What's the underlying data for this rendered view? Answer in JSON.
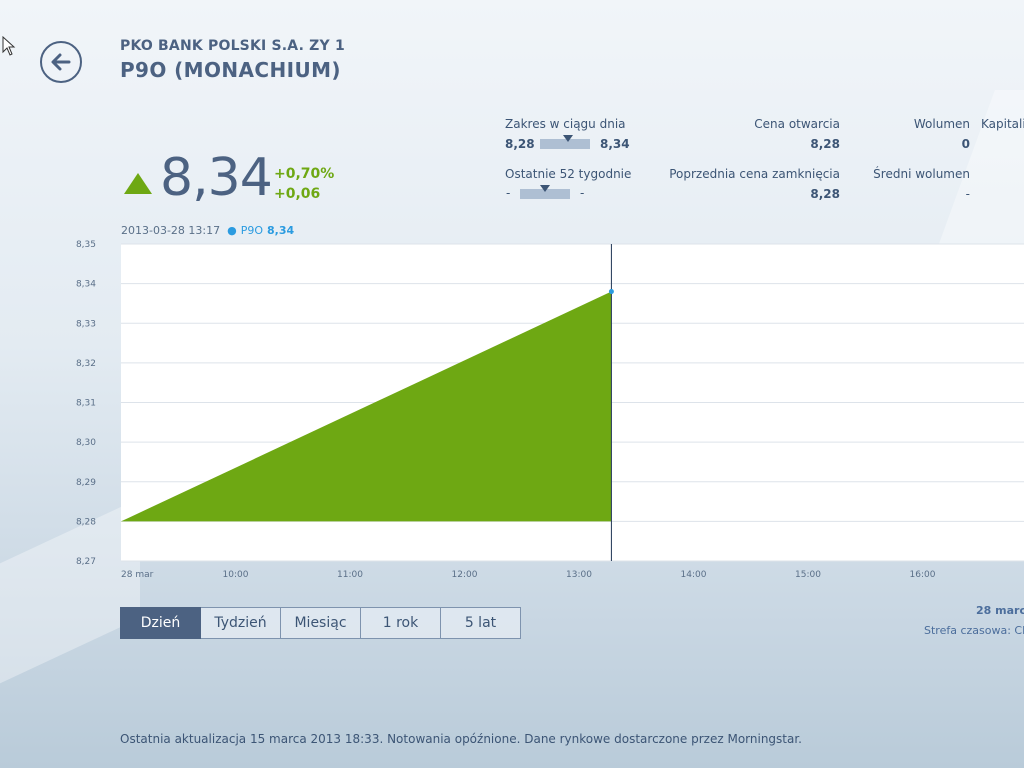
{
  "header": {
    "company": "PKO BANK POLSKI S.A. ZY 1",
    "ticker": "P9O (MONACHIUM)"
  },
  "quote": {
    "price": "8,34",
    "direction": "up",
    "change_percent": "+0,70%",
    "change_abs": "+0,06"
  },
  "stats": {
    "day_range": {
      "label": "Zakres w ciągu dnia",
      "low": "8,28",
      "high": "8,34",
      "position": 0.55
    },
    "week52_range": {
      "label": "Ostatnie 52 tygodnie",
      "low": "-",
      "high": "-",
      "position": 0.5
    },
    "open": {
      "label": "Cena otwarcia",
      "value": "8,28"
    },
    "prev_close": {
      "label": "Poprzednia cena zamknięcia",
      "value": "8,28"
    },
    "volume": {
      "label": "Wolumen",
      "value": "0"
    },
    "avg_volume": {
      "label": "Średni wolumen",
      "value": "-"
    },
    "market_cap": {
      "label": "Kapitaliz"
    }
  },
  "hover": {
    "datetime": "2013-03-28 13:17",
    "symbol": "P9O",
    "value": "8,34"
  },
  "chart_data": {
    "type": "area",
    "title": "",
    "xlabel": "",
    "ylabel": "",
    "x_ticks": [
      "28 mar",
      "10:00",
      "11:00",
      "12:00",
      "13:00",
      "14:00",
      "15:00",
      "16:00"
    ],
    "y_ticks": [
      "8,35",
      "8,34",
      "8,33",
      "8,32",
      "8,31",
      "8,30",
      "8,29",
      "8,28",
      "8,27"
    ],
    "ylim": [
      8.27,
      8.35
    ],
    "x_range_hours": [
      9.0,
      16.8
    ],
    "baseline": 8.28,
    "series": [
      {
        "points": [
          {
            "t": 9.0,
            "y": 8.28
          },
          {
            "t": 13.283,
            "y": 8.338
          }
        ]
      }
    ],
    "cursor_time": 13.283,
    "fill_color": "#6ea813",
    "marker_color": "#2b9be0",
    "grid": true
  },
  "periods": {
    "tabs": [
      "Dzień",
      "Tydzień",
      "Miesiąc",
      "1 rok",
      "5 lat"
    ],
    "active_index": 0
  },
  "side_info": {
    "date": "28 marc",
    "timezone": "Strefa czasowa: CE"
  },
  "footer": {
    "text": "Ostatnia aktualizacja 15 marca 2013 18:33. Notowania opóźnione. Dane rynkowe dostarczone przez Morningstar."
  },
  "icons": {
    "back": "arrow-left-icon",
    "trend": "triangle-up-icon",
    "cursor": "mouse-pointer-icon"
  }
}
